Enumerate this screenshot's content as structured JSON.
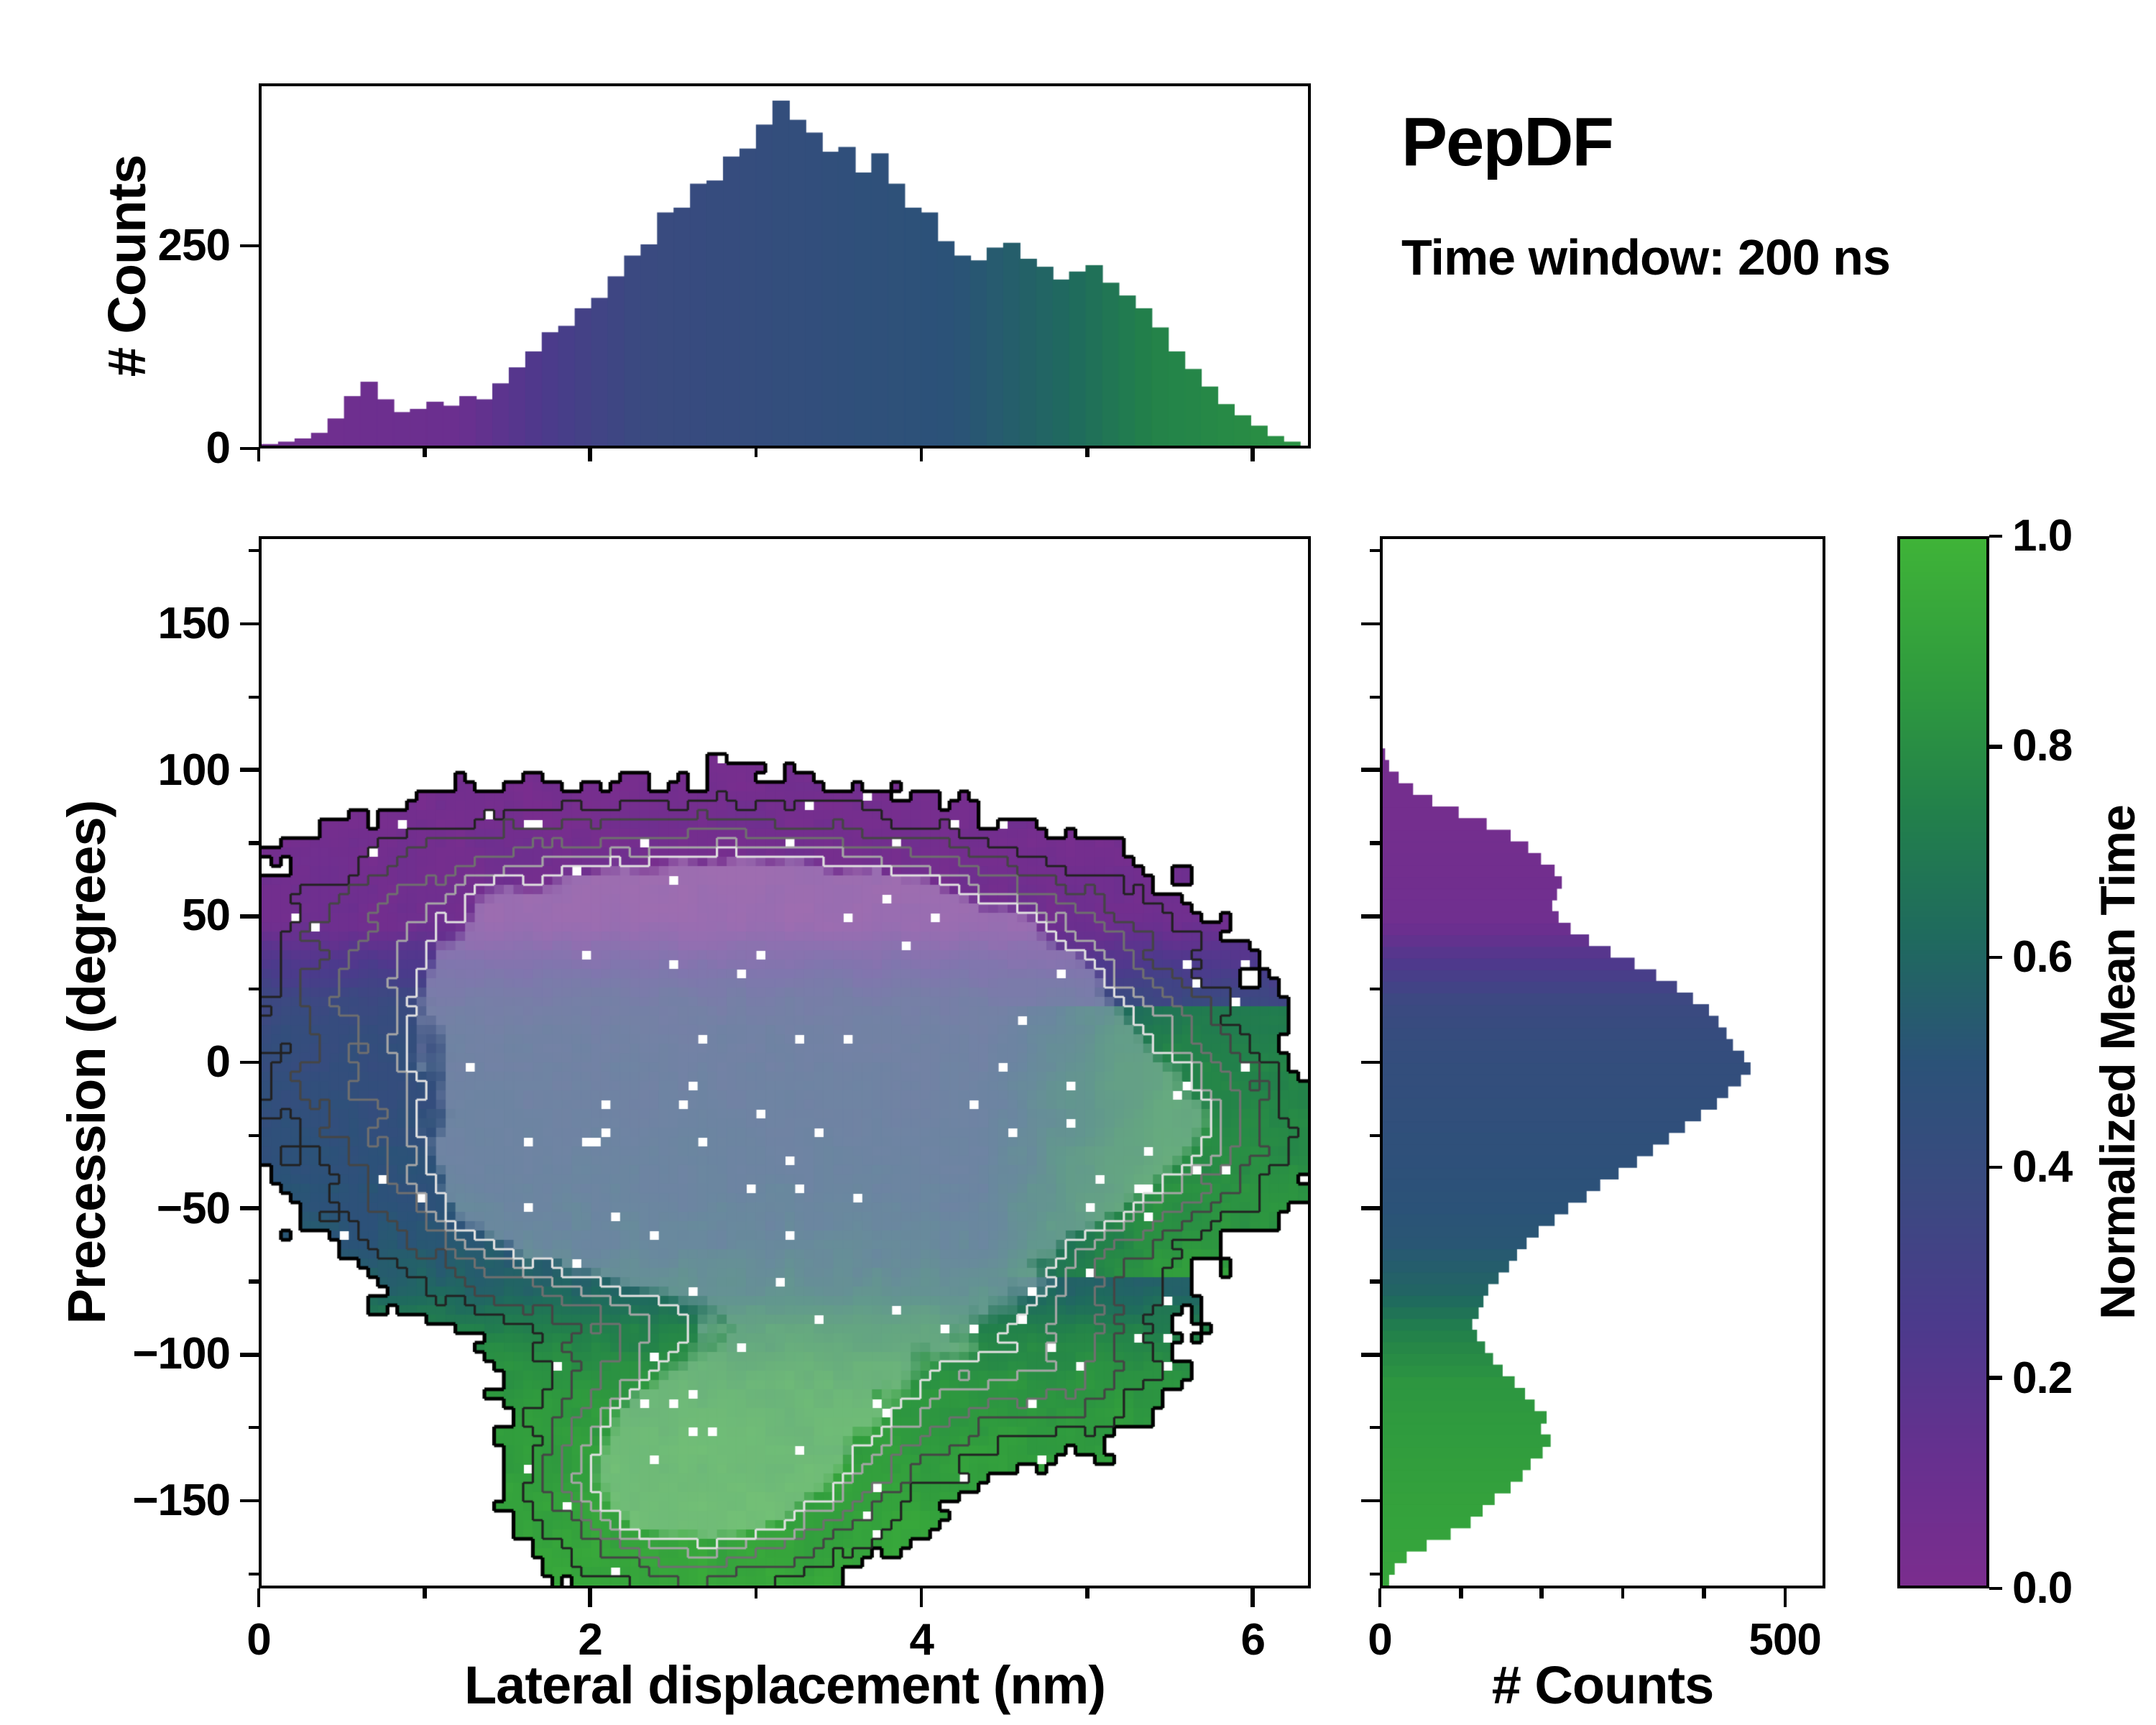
{
  "title": {
    "main": "PepDF",
    "subtitle": "Time window: 200 ns"
  },
  "axes": {
    "xlabel_main": "Lateral displacement (nm)",
    "ylabel_main": "Precession (degrees)",
    "ylabel_top": "# Counts",
    "xlabel_right": "# Counts"
  },
  "colorbar": {
    "label": "Normalized Mean Time",
    "range": [
      0,
      1
    ],
    "ticks": [
      {
        "v": 1.0,
        "label": "1.0"
      },
      {
        "v": 0.8,
        "label": "0.8"
      },
      {
        "v": 0.6,
        "label": "0.6"
      },
      {
        "v": 0.4,
        "label": "0.4"
      },
      {
        "v": 0.2,
        "label": "0.2"
      },
      {
        "v": 0.0,
        "label": "0.0"
      }
    ]
  },
  "colors": {
    "background": "#ffffff",
    "axis": "#000000",
    "colormap_stops": [
      [
        0.0,
        "#7b2d8e"
      ],
      [
        0.12,
        "#67308f"
      ],
      [
        0.25,
        "#4c3a8c"
      ],
      [
        0.38,
        "#3a4a80"
      ],
      [
        0.5,
        "#2b5278"
      ],
      [
        0.62,
        "#1f6a5e"
      ],
      [
        0.74,
        "#22804b"
      ],
      [
        0.86,
        "#2f9a3e"
      ],
      [
        1.0,
        "#3fb338"
      ]
    ]
  },
  "chart_data": [
    {
      "id": "top_hist",
      "type": "bar",
      "title": "Marginal histogram of lateral displacement, bars colored by normalized mean time",
      "xlabel": "Lateral displacement (nm)",
      "ylabel": "# Counts",
      "x_range": [
        0,
        6.35
      ],
      "y_range": [
        0,
        450
      ],
      "bin_start": 0,
      "bin_width": 0.1,
      "values": [
        2,
        5,
        9,
        16,
        34,
        62,
        80,
        58,
        42,
        46,
        55,
        50,
        62,
        58,
        78,
        98,
        118,
        142,
        150,
        172,
        185,
        212,
        238,
        252,
        292,
        298,
        328,
        332,
        362,
        372,
        402,
        432,
        408,
        392,
        368,
        374,
        342,
        366,
        328,
        298,
        292,
        256,
        238,
        232,
        248,
        254,
        234,
        224,
        208,
        218,
        226,
        204,
        188,
        172,
        148,
        118,
        96,
        74,
        52,
        38,
        25,
        12,
        5
      ],
      "yticks": [
        {
          "v": 0,
          "label": "0"
        },
        {
          "v": 250,
          "label": "250"
        }
      ]
    },
    {
      "id": "joint",
      "type": "heatmap",
      "title": "2D histogram of precession vs lateral displacement, colored by normalized mean time, with density contours",
      "xlabel": "Lateral displacement (nm)",
      "ylabel": "Precession (degrees)",
      "x_range": [
        0,
        6.35
      ],
      "y_range": [
        -180,
        180
      ],
      "grid": [
        108,
        112
      ],
      "xticks": [
        {
          "v": 0,
          "label": "0"
        },
        {
          "v": 2,
          "label": "2"
        },
        {
          "v": 4,
          "label": "4"
        },
        {
          "v": 6,
          "label": "6"
        }
      ],
      "xticks_minor": [
        1,
        3,
        5
      ],
      "yticks": [
        {
          "v": 150,
          "label": "150"
        },
        {
          "v": 100,
          "label": "100"
        },
        {
          "v": 50,
          "label": "50"
        },
        {
          "v": 0,
          "label": "0"
        },
        {
          "v": -50,
          "label": "−50"
        },
        {
          "v": -100,
          "label": "−100"
        },
        {
          "v": -150,
          "label": "−150"
        }
      ],
      "yticks_minor": [
        175,
        125,
        75,
        25,
        -25,
        -75,
        -125,
        -175
      ],
      "density_threshold": 0.19,
      "hole_fraction": 0.015,
      "noise": {
        "seed": 42,
        "coarse": 0.16,
        "fine": 0.07,
        "tnoise": 0.06
      },
      "contour_levels": [
        {
          "v": 0.19,
          "color": "#000000",
          "width": 2.6
        },
        {
          "v": 0.33,
          "color": "#222222",
          "width": 1.6
        },
        {
          "v": 0.47,
          "color": "#454545",
          "width": 1.6
        },
        {
          "v": 0.63,
          "color": "#6f6f6f",
          "width": 1.6
        },
        {
          "v": 0.79,
          "color": "#a5a5a5",
          "width": 1.6
        },
        {
          "v": 0.92,
          "color": "#e0e0e0",
          "width": 1.6
        }
      ],
      "density_blobs": [
        [
          2.1,
          48,
          1.15,
          24,
          0.5
        ],
        [
          3.6,
          45,
          1.2,
          23,
          0.5
        ],
        [
          1.2,
          5,
          0.9,
          45,
          0.5
        ],
        [
          2.4,
          -5,
          1.1,
          45,
          0.72
        ],
        [
          3.4,
          0,
          1.0,
          40,
          0.78
        ],
        [
          3.9,
          -15,
          0.9,
          35,
          0.72
        ],
        [
          4.9,
          -30,
          0.75,
          28,
          0.6
        ],
        [
          5.6,
          -20,
          0.45,
          18,
          0.4
        ],
        [
          2.0,
          -40,
          0.6,
          22,
          0.7
        ],
        [
          3.0,
          -60,
          1.0,
          25,
          0.55
        ],
        [
          3.0,
          -130,
          0.75,
          28,
          0.75
        ],
        [
          2.5,
          -150,
          0.55,
          22,
          0.6
        ],
        [
          3.5,
          -105,
          0.7,
          22,
          0.55
        ],
        [
          4.9,
          -105,
          0.45,
          18,
          0.5
        ],
        [
          4.3,
          -75,
          0.5,
          20,
          0.45
        ],
        [
          3.3,
          20,
          0.9,
          25,
          0.85
        ],
        [
          3.85,
          -8,
          0.45,
          16,
          0.9
        ],
        [
          2.35,
          -3,
          0.4,
          14,
          0.85
        ],
        [
          1.75,
          -40,
          0.35,
          14,
          0.8
        ],
        [
          4.85,
          -28,
          0.4,
          16,
          0.65
        ],
        [
          2.7,
          -135,
          0.5,
          18,
          0.65
        ],
        [
          4.55,
          12,
          0.8,
          22,
          0.45
        ]
      ],
      "mean_time_vs_precession": [
        [
          -180,
          0.93
        ],
        [
          -150,
          0.9
        ],
        [
          -110,
          0.84
        ],
        [
          -92,
          0.74
        ],
        [
          -80,
          0.6
        ],
        [
          -62,
          0.52
        ],
        [
          -30,
          0.47
        ],
        [
          8,
          0.42
        ],
        [
          22,
          0.36
        ],
        [
          36,
          0.22
        ],
        [
          48,
          0.07
        ],
        [
          85,
          0.04
        ]
      ],
      "mean_time_vs_lateral": [
        [
          0,
          0.06
        ],
        [
          1.2,
          0.1
        ],
        [
          1.9,
          0.3
        ],
        [
          2.3,
          0.38
        ],
        [
          4.2,
          0.5
        ],
        [
          4.9,
          0.62
        ],
        [
          5.4,
          0.75
        ],
        [
          6.3,
          0.82
        ]
      ],
      "right_boost": {
        "x_min": 4.35,
        "y_min": -75,
        "y_max": 18,
        "rate": 0.28,
        "max": 0.32
      }
    },
    {
      "id": "right_hist",
      "type": "bar",
      "orientation": "horizontal",
      "title": "Marginal histogram of precession, bars colored by normalized mean time",
      "xlabel": "# Counts",
      "ylabel": "Precession (degrees)",
      "x_range": [
        0,
        550
      ],
      "y_range": [
        -180,
        180
      ],
      "bin_start": -180,
      "bin_width": 4,
      "values": [
        8,
        15,
        30,
        55,
        85,
        110,
        125,
        140,
        160,
        175,
        185,
        200,
        210,
        198,
        205,
        190,
        178,
        165,
        150,
        138,
        128,
        118,
        112,
        120,
        126,
        132,
        145,
        158,
        168,
        180,
        195,
        215,
        232,
        255,
        272,
        295,
        318,
        338,
        358,
        378,
        398,
        418,
        432,
        448,
        460,
        452,
        438,
        430,
        420,
        408,
        388,
        368,
        342,
        315,
        285,
        258,
        235,
        220,
        212,
        218,
        224,
        215,
        198,
        182,
        160,
        130,
        95,
        62,
        38,
        20,
        8,
        3,
        0,
        0,
        0,
        0,
        0,
        0,
        0,
        0,
        0,
        0,
        0,
        0,
        0,
        0,
        0,
        0,
        0,
        0
      ],
      "xticks": [
        {
          "v": 0,
          "label": "0"
        },
        {
          "v": 500,
          "label": "500"
        }
      ],
      "xticks_minor": [
        100,
        200,
        300,
        400
      ]
    }
  ]
}
